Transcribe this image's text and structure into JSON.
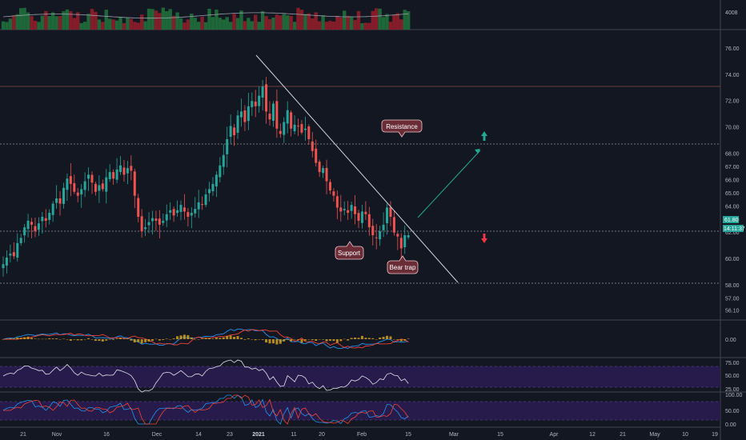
{
  "chart_data": {
    "type": "candlestick",
    "colors": {
      "background": "#131722",
      "up": "#26a69a",
      "down": "#ef5350",
      "panel_border": "#434651",
      "rsi_band": "#2a1c52",
      "macd_blue": "#2196f3",
      "macd_red": "#f44336",
      "histogram": "#d4a017",
      "target_arrow": "#22ab94",
      "down_arrow": "#f23645"
    },
    "x_axis": {
      "ticks": [
        "21",
        "Nov",
        "16",
        "Dec",
        "14",
        "23",
        "2021",
        "11",
        "20",
        "Feb",
        "15",
        "Mar",
        "15",
        "Apr",
        "12",
        "21",
        "May",
        "10",
        "19"
      ],
      "bold_ticks": [
        "2021"
      ]
    },
    "price_axis": {
      "ticks": [
        "76.00",
        "74.00",
        "72.00",
        "70.00",
        "68.00",
        "67.00",
        "66.00",
        "65.00",
        "64.00",
        "63.00",
        "62.00",
        "60.00",
        "58.00",
        "57.00",
        "56.10"
      ],
      "ylim": [
        55.6,
        77.0
      ]
    },
    "volume_axis": {
      "label": "4008"
    },
    "macd_axis": {
      "label": "0.00"
    },
    "rsi_axis": {
      "ticks": [
        "75.00",
        "50.00",
        "25.00"
      ]
    },
    "stoch_axis": {
      "ticks": [
        "100.00",
        "50.00",
        "0.00"
      ]
    },
    "current_price": {
      "value": "61.80",
      "countdown": "14:11:37"
    },
    "candles_close": [
      59.6,
      60.1,
      60.4,
      60.2,
      61.2,
      61.6,
      62.4,
      62.9,
      62.6,
      62.1,
      62.7,
      63.2,
      62.9,
      63.5,
      64.2,
      64.6,
      64.2,
      65.4,
      66.1,
      65.7,
      65.1,
      64.8,
      65.3,
      65.9,
      66.4,
      65.8,
      65.1,
      65.6,
      65.3,
      66.2,
      66.6,
      66.1,
      66.8,
      67.1,
      66.4,
      66.9,
      66.7,
      64.8,
      63.2,
      62.1,
      62.4,
      62.8,
      63.1,
      62.9,
      62.6,
      62.9,
      63.4,
      63.7,
      63.3,
      63.7,
      64.1,
      63.6,
      63.2,
      63.5,
      63.8,
      64.3,
      64.1,
      64.9,
      65.3,
      65.7,
      66.4,
      67.1,
      67.9,
      69.1,
      70.1,
      69.4,
      70.9,
      71.2,
      70.4,
      71.6,
      72.0,
      71.6,
      72.4,
      73.1,
      71.2,
      70.6,
      71.8,
      69.9,
      69.5,
      70.4,
      71.3,
      69.9,
      70.2,
      70.1,
      69.6,
      69.9,
      69.1,
      68.2,
      67.3,
      66.6,
      66.9,
      65.9,
      65.2,
      64.8,
      63.9,
      63.6,
      63.8,
      63.5,
      64.1,
      63.4,
      62.9,
      63.6,
      63.4,
      62.4,
      61.8,
      61.6,
      62.1,
      62.6,
      63.9,
      63.2,
      62.0,
      61.7,
      60.8,
      61.8,
      61.8
    ],
    "annotations": [
      {
        "text": "Resistance"
      },
      {
        "text": "Support"
      },
      {
        "text": "Bear trap"
      }
    ]
  }
}
